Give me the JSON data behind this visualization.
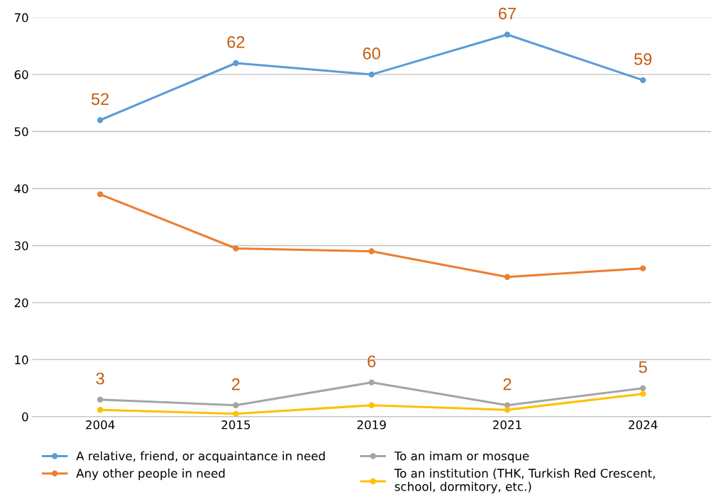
{
  "chart_data": {
    "type": "line",
    "categories": [
      "2004",
      "2015",
      "2019",
      "2021",
      "2024"
    ],
    "series": [
      {
        "name": "A relative, friend, or acquaintance in need",
        "color": "#5b9bd5",
        "values": [
          52,
          62,
          60,
          67,
          59
        ],
        "value_labels": [
          "52",
          "62",
          "60",
          "67",
          "59"
        ]
      },
      {
        "name": "Any other people in need",
        "color": "#ed7d31",
        "values": [
          39,
          29.5,
          29,
          24.5,
          26
        ]
      },
      {
        "name": "To an imam or mosque",
        "color": "#a5a5a5",
        "values": [
          3,
          2,
          6,
          2,
          5
        ],
        "value_labels": [
          "3",
          "2",
          "6",
          "2",
          "5"
        ]
      },
      {
        "name": "To an institution (THK, Turkish Red Crescent,\nschool, dormitory, etc.)",
        "color": "#ffc000",
        "values": [
          1.2,
          0.5,
          2,
          1.2,
          4
        ]
      }
    ],
    "ylim": [
      0,
      70
    ],
    "yticks": [
      0,
      10,
      20,
      30,
      40,
      50,
      60,
      70
    ],
    "grid": "y",
    "legend": "bottom",
    "marker": "circle",
    "line_style": "solid"
  }
}
